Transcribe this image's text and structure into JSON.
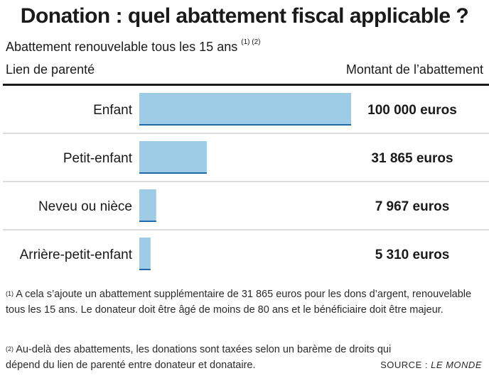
{
  "title": "Donation : quel abattement fiscal applicable ?",
  "subtitle": "Abattement renouvelable tous les 15 ans",
  "subtitle_notes": "(1) (2)",
  "columns": {
    "left": "Lien de parenté",
    "right": "Montant de l’abattement"
  },
  "chart_data": {
    "type": "bar",
    "orientation": "horizontal",
    "categories": [
      "Enfant",
      "Petit-enfant",
      "Neveu ou nièce",
      "Arrière-petit-enfant"
    ],
    "values": [
      100000,
      31865,
      7967,
      5310
    ],
    "value_labels": [
      "100 000 euros",
      "31 865 euros",
      "7 967 euros",
      "5 310 euros"
    ],
    "xlim": [
      0,
      100000
    ],
    "grid": false,
    "colors": {
      "bar": "#9ecbe6",
      "bar_edge": "#1f6aa5",
      "divider": "#c8c8c8"
    }
  },
  "footnotes": [
    {
      "mark": "(1)",
      "text": "A cela s’ajoute un abattement supplémentaire de 31 865 euros pour les dons d’argent, renouvelable tous les 15 ans. Le donateur doit être âgé de moins de 80 ans et le bénéficiaire doit être majeur."
    },
    {
      "mark": "(2)",
      "text": "Au-delà des abattements, les donations sont taxées selon un barème de droits qui dépend du lien de parenté entre donateur et donataire."
    }
  ],
  "source": {
    "label": "SOURCE :",
    "name": "LE MONDE"
  }
}
